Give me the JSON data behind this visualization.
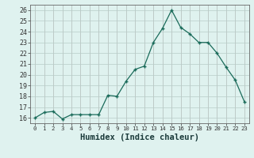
{
  "x": [
    0,
    1,
    2,
    3,
    4,
    5,
    6,
    7,
    8,
    9,
    10,
    11,
    12,
    13,
    14,
    15,
    16,
    17,
    18,
    19,
    20,
    21,
    22,
    23
  ],
  "y": [
    16.0,
    16.5,
    16.6,
    15.9,
    16.3,
    16.3,
    16.3,
    16.3,
    18.1,
    18.0,
    19.4,
    20.5,
    20.8,
    23.0,
    24.3,
    26.0,
    24.4,
    23.8,
    23.0,
    23.0,
    22.0,
    20.7,
    19.5,
    17.5
  ],
  "line_color": "#1a6b5a",
  "marker": "+",
  "marker_color": "#1a6b5a",
  "grid_color": "#c0dcd8",
  "grid_color2": "#e8c8c8",
  "xlabel": "Humidex (Indice chaleur)",
  "ylabel_ticks": [
    16,
    17,
    18,
    19,
    20,
    21,
    22,
    23,
    24,
    25,
    26
  ],
  "xlim": [
    -0.5,
    23.5
  ],
  "ylim": [
    15.5,
    26.5
  ],
  "axis_bg": "#dff2ef",
  "outer_bg": "#dff2ef"
}
